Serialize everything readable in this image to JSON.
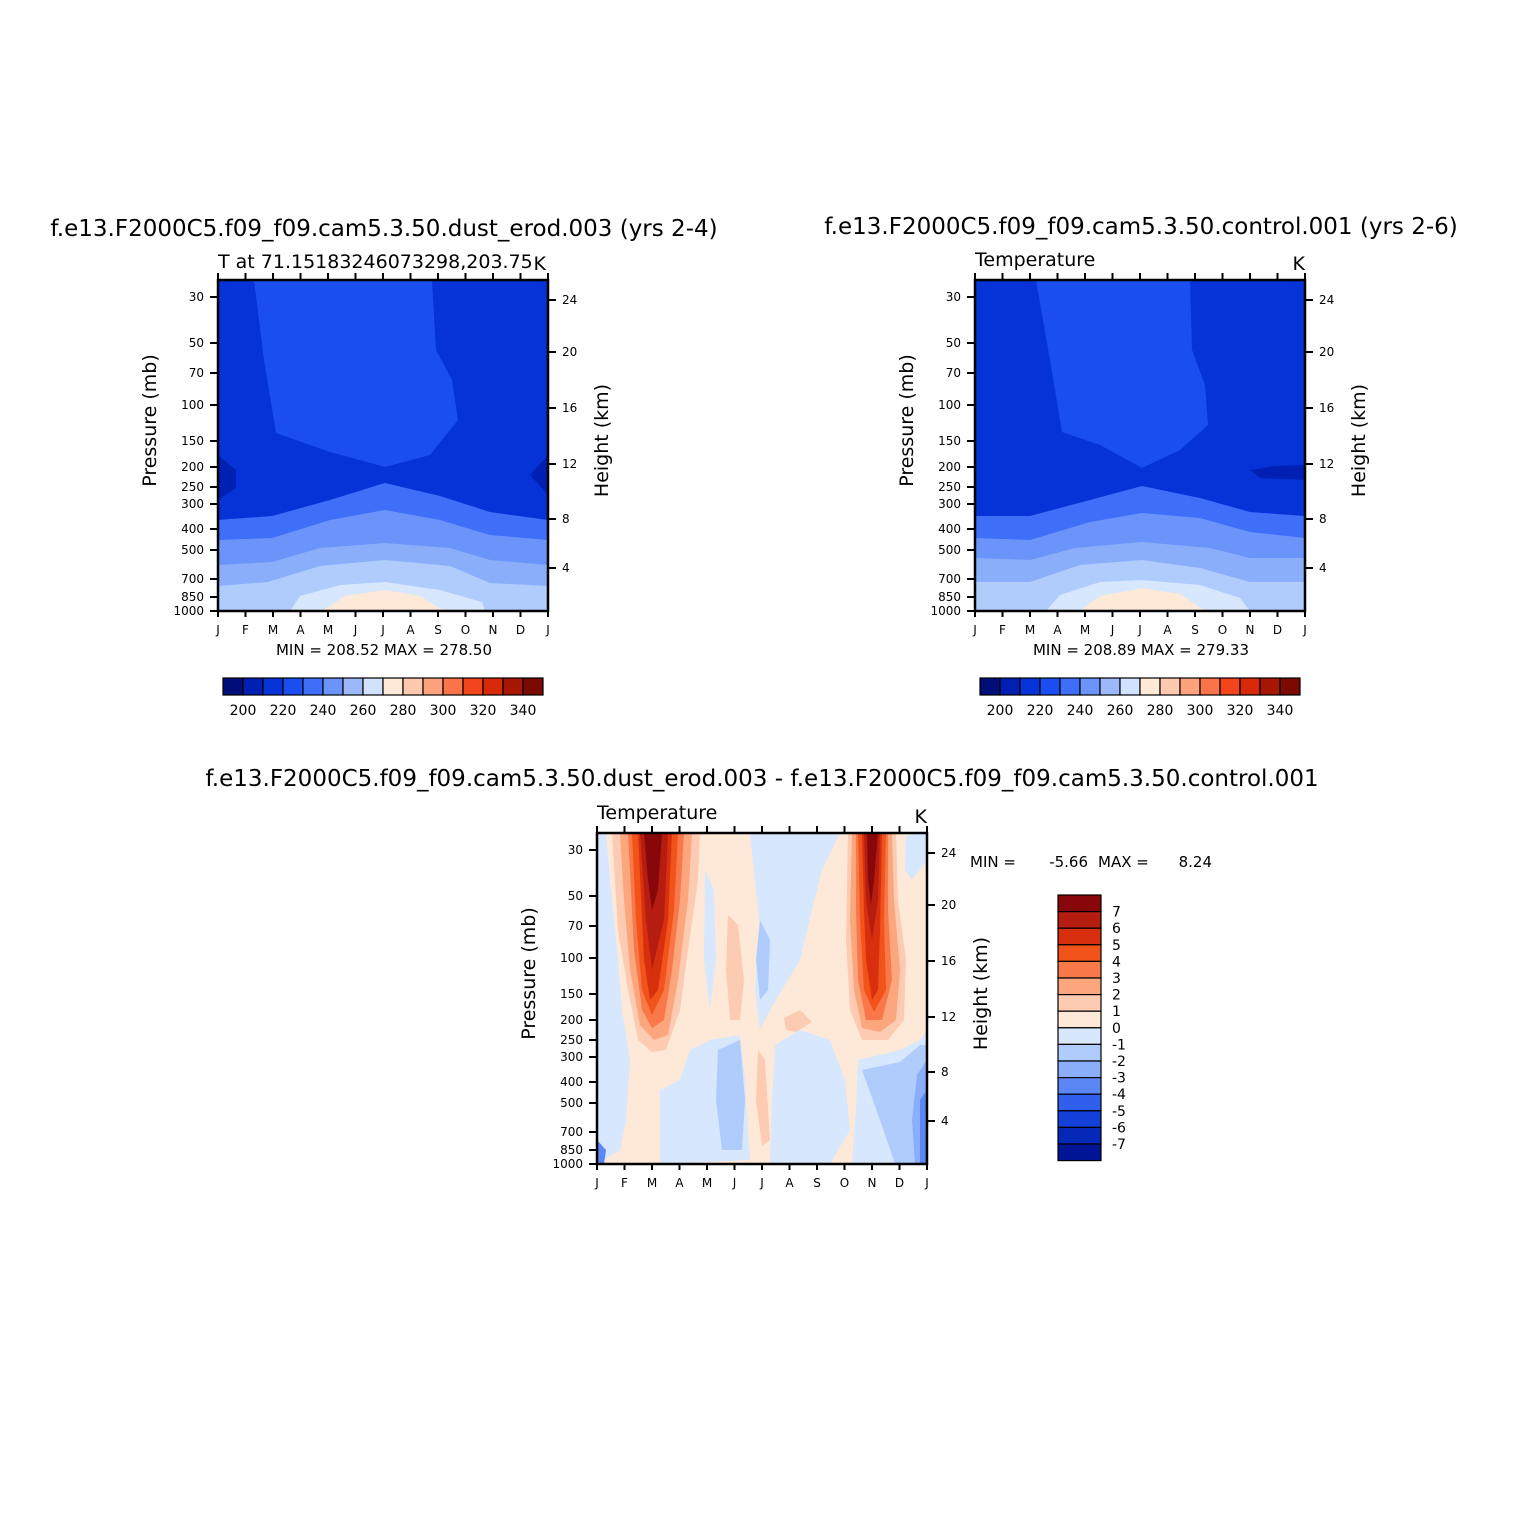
{
  "figure": {
    "month_ticks": [
      "J",
      "F",
      "M",
      "A",
      "M",
      "J",
      "J",
      "A",
      "S",
      "O",
      "N",
      "D",
      "J"
    ],
    "pressure_ticks": [
      "30",
      "50",
      "70",
      "100",
      "150",
      "200",
      "250",
      "300",
      "400",
      "500",
      "700",
      "850",
      "1000"
    ],
    "height_ticks": [
      "24",
      "20",
      "16",
      "12",
      "8",
      "4"
    ],
    "ylabel_left": "Pressure (mb)",
    "ylabel_right": "Height (km)"
  },
  "panels": [
    {
      "title": "f.e13.F2000C5.f09_f09.cam5.3.50.dust_erod.003 (yrs 2-4)",
      "subtitle": "T at 71.15183246073298,203.75",
      "units": "K",
      "stats": "MIN = 208.52  MAX = 278.50",
      "colorbar_labels": [
        "200",
        "220",
        "240",
        "260",
        "280",
        "300",
        "320",
        "340"
      ]
    },
    {
      "title": "f.e13.F2000C5.f09_f09.cam5.3.50.control.001 (yrs 2-6)",
      "subtitle": "Temperature",
      "units": "K",
      "stats": "MIN = 208.89  MAX = 279.33",
      "colorbar_labels": [
        "200",
        "220",
        "240",
        "260",
        "280",
        "300",
        "320",
        "340"
      ]
    },
    {
      "title": "f.e13.F2000C5.f09_f09.cam5.3.50.dust_erod.003 - f.e13.F2000C5.f09_f09.cam5.3.50.control.001",
      "subtitle": "Temperature",
      "units": "K",
      "stats_min_label": "MIN =",
      "stats_min_value": "-5.66",
      "stats_max_label": "MAX =",
      "stats_max_value": "8.24",
      "colorbar_labels": [
        "7",
        "6",
        "5",
        "4",
        "3",
        "2",
        "1",
        "0",
        "-1",
        "-2",
        "-3",
        "-4",
        "-5",
        "-6",
        "-7"
      ]
    }
  ],
  "colors": {
    "abs_scale": [
      "#000e7a",
      "#0020b4",
      "#0533d8",
      "#1a4ef0",
      "#3f6ef8",
      "#6a94fa",
      "#9cb8fb",
      "#d0e2fe",
      "#fee8d6",
      "#fdcab0",
      "#fca37e",
      "#fa7449",
      "#f2451b",
      "#d82a08",
      "#a81604",
      "#7a0a02"
    ],
    "diff_scale": [
      "#88070a",
      "#b51d10",
      "#d8300f",
      "#f1531a",
      "#f9784a",
      "#fca67e",
      "#fdcbb2",
      "#fee9d8",
      "#d6e7fe",
      "#b0ccfc",
      "#8aaefa",
      "#5b87f5",
      "#2f5fec",
      "#1240d8",
      "#0628b8",
      "#001496"
    ]
  },
  "chart_data": [
    {
      "type": "heatmap",
      "title": "f.e13.F2000C5.f09_f09.cam5.3.50.dust_erod.003 (yrs 2-4)",
      "subtitle": "T at 71.15183246073298,203.75",
      "units": "K",
      "x": [
        "J",
        "F",
        "M",
        "A",
        "M",
        "J",
        "J",
        "A",
        "S",
        "O",
        "N",
        "D",
        "J"
      ],
      "y_pressure_mb": [
        30,
        50,
        70,
        100,
        150,
        200,
        250,
        300,
        400,
        500,
        700,
        850,
        1000
      ],
      "y_height_km": [
        24,
        20,
        16,
        12,
        8,
        4
      ],
      "min": 208.52,
      "max": 278.5,
      "contour_levels": [
        200,
        205,
        210,
        215,
        220,
        225,
        230,
        235,
        240,
        245,
        250,
        255,
        260,
        265,
        270,
        275,
        280,
        285,
        290,
        295,
        300,
        305,
        310,
        315,
        320,
        325,
        330,
        335,
        340
      ],
      "colorbar_ticks": [
        200,
        220,
        240,
        260,
        280,
        300,
        320,
        340
      ],
      "profile_jan": [
        [
          30,
          212
        ],
        [
          50,
          212
        ],
        [
          100,
          212
        ],
        [
          150,
          212
        ],
        [
          200,
          209
        ],
        [
          250,
          210
        ],
        [
          300,
          213
        ],
        [
          400,
          228
        ],
        [
          500,
          236
        ],
        [
          700,
          246
        ],
        [
          850,
          254
        ],
        [
          1000,
          258
        ]
      ],
      "profile_jul": [
        [
          30,
          218
        ],
        [
          50,
          218
        ],
        [
          100,
          218
        ],
        [
          150,
          217
        ],
        [
          200,
          216
        ],
        [
          250,
          218
        ],
        [
          300,
          222
        ],
        [
          400,
          236
        ],
        [
          500,
          246
        ],
        [
          700,
          262
        ],
        [
          850,
          270
        ],
        [
          1000,
          276
        ]
      ]
    },
    {
      "type": "heatmap",
      "title": "f.e13.F2000C5.f09_f09.cam5.3.50.control.001 (yrs 2-6)",
      "subtitle": "Temperature",
      "units": "K",
      "x": [
        "J",
        "F",
        "M",
        "A",
        "M",
        "J",
        "J",
        "A",
        "S",
        "O",
        "N",
        "D",
        "J"
      ],
      "y_pressure_mb": [
        30,
        50,
        70,
        100,
        150,
        200,
        250,
        300,
        400,
        500,
        700,
        850,
        1000
      ],
      "y_height_km": [
        24,
        20,
        16,
        12,
        8,
        4
      ],
      "min": 208.89,
      "max": 279.33,
      "colorbar_ticks": [
        200,
        220,
        240,
        260,
        280,
        300,
        320,
        340
      ]
    },
    {
      "type": "heatmap",
      "title": "f.e13.F2000C5.f09_f09.cam5.3.50.dust_erod.003 - f.e13.F2000C5.f09_f09.cam5.3.50.control.001",
      "subtitle": "Temperature",
      "units": "K",
      "x": [
        "J",
        "F",
        "M",
        "A",
        "M",
        "J",
        "J",
        "A",
        "S",
        "O",
        "N",
        "D",
        "J"
      ],
      "y_pressure_mb": [
        30,
        50,
        70,
        100,
        150,
        200,
        250,
        300,
        400,
        500,
        700,
        850,
        1000
      ],
      "y_height_km": [
        24,
        20,
        16,
        12,
        8,
        4
      ],
      "min": -5.66,
      "max": 8.24,
      "contour_levels": [
        -7,
        -6,
        -5,
        -4,
        -3,
        -2,
        -1,
        0,
        1,
        2,
        3,
        4,
        5,
        6,
        7
      ],
      "features": [
        {
          "month": "M",
          "p_top_mb": 30,
          "p_bottom_mb": 230,
          "peak_K": 8
        },
        {
          "month": "N",
          "p_top_mb": 30,
          "p_bottom_mb": 220,
          "peak_K": 7
        }
      ]
    }
  ]
}
